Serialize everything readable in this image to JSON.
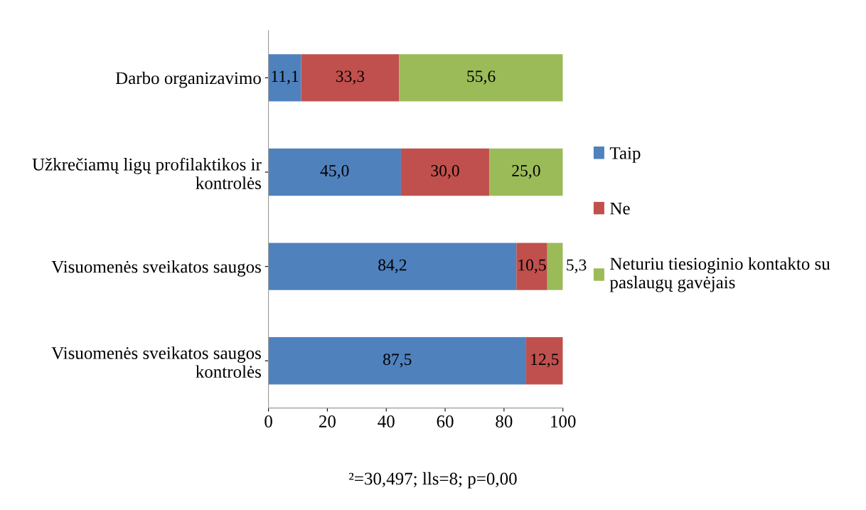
{
  "chart_data": {
    "type": "bar",
    "orientation": "horizontal",
    "stacked": true,
    "categories": [
      "Darbo organizavimo",
      "Užkrečiamų ligų profilaktikos ir\nkontrolės",
      "Visuomenės sveikatos saugos",
      "Visuomenės sveikatos saugos\nkontrolės"
    ],
    "series": [
      {
        "name": "Taip",
        "color": "#4f81bd",
        "values": [
          11.1,
          45.0,
          84.2,
          87.5
        ],
        "value_labels": [
          "11,1",
          "45,0",
          "84,2",
          "87,5"
        ]
      },
      {
        "name": "Ne",
        "color": "#c0504d",
        "values": [
          33.3,
          30.0,
          10.5,
          12.5
        ],
        "value_labels": [
          "33,3",
          "30,0",
          "10,5",
          "12,5"
        ]
      },
      {
        "name": "Neturiu tiesioginio kontakto su\npaslaugų gavėjais",
        "color": "#9bbb59",
        "values": [
          55.6,
          25.0,
          5.3,
          null
        ],
        "value_labels": [
          "55,6",
          "25,0",
          "5,3",
          null
        ]
      }
    ],
    "xlim": [
      0,
      100
    ],
    "xticks": [
      0,
      20,
      40,
      60,
      80,
      100
    ],
    "grid": false,
    "legend": "right",
    "annotations": [
      "²=30,497; lls=8; p=0,00"
    ]
  }
}
